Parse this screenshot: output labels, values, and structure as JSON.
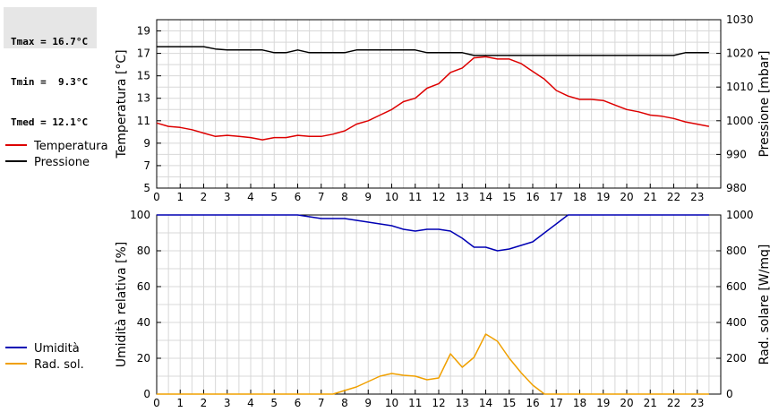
{
  "stats": [
    {
      "label": "Tmax =",
      "value": "16.7°C"
    },
    {
      "label": "Tmin =",
      "value": " 9.3°C"
    },
    {
      "label": "Tmed =",
      "value": "12.1°C"
    }
  ],
  "colors": {
    "temperatura": "#dd0000",
    "pressione": "#000000",
    "umidita": "#0000b4",
    "radiazione": "#f0a000",
    "grid": "#d8d8d8"
  },
  "chart_data": [
    {
      "type": "line",
      "title": "",
      "xlabel": "",
      "ylabel": "Temperatura [°C]",
      "ylabel_right": "Pressione [mbar]",
      "xlim": [
        0,
        24
      ],
      "ylim": [
        5,
        20
      ],
      "ylim_right": [
        980,
        1030
      ],
      "x_ticks": [
        "0",
        "1",
        "2",
        "3",
        "4",
        "5",
        "6",
        "7",
        "8",
        "9",
        "10",
        "11",
        "12",
        "13",
        "14",
        "15",
        "16",
        "17",
        "18",
        "19",
        "20",
        "21",
        "22",
        "23"
      ],
      "y_ticks": [
        "5",
        "7",
        "9",
        "11",
        "13",
        "15",
        "17",
        "19"
      ],
      "y_ticks_right": [
        "980",
        "990",
        "1000",
        "1010",
        "1020",
        "1030"
      ],
      "grid": true,
      "legend": "left",
      "series": [
        {
          "name": "Temperatura",
          "axis": "left",
          "color": "#dd0000",
          "x": [
            0,
            0.5,
            1,
            1.5,
            2,
            2.5,
            3,
            3.5,
            4,
            4.5,
            5,
            5.5,
            6,
            6.5,
            7,
            7.5,
            8,
            8.5,
            9,
            9.5,
            10,
            10.5,
            11,
            11.5,
            12,
            12.5,
            13,
            13.5,
            14,
            14.5,
            15,
            15.5,
            16,
            16.5,
            17,
            17.5,
            18,
            18.5,
            19,
            19.5,
            20,
            20.5,
            21,
            21.5,
            22,
            22.5,
            23,
            23.5
          ],
          "values": [
            10.8,
            10.5,
            10.4,
            10.2,
            9.9,
            9.6,
            9.7,
            9.6,
            9.5,
            9.3,
            9.5,
            9.5,
            9.7,
            9.6,
            9.6,
            9.8,
            10.1,
            10.7,
            11.0,
            11.5,
            12.0,
            12.7,
            13.0,
            13.9,
            14.3,
            15.3,
            15.7,
            16.6,
            16.7,
            16.5,
            16.5,
            16.1,
            15.4,
            14.7,
            13.7,
            13.2,
            12.9,
            12.9,
            12.8,
            12.4,
            12.0,
            11.8,
            11.5,
            11.4,
            11.2,
            10.9,
            10.7,
            10.5
          ]
        },
        {
          "name": "Pressione",
          "axis": "right",
          "color": "#000000",
          "x": [
            0,
            1,
            2,
            2.5,
            3,
            4,
            4.5,
            5,
            5.5,
            6,
            6.5,
            7,
            8,
            8.5,
            9,
            10,
            11,
            11.5,
            12,
            13,
            13.5,
            14,
            15,
            16,
            17,
            18,
            19,
            20,
            21,
            22,
            22.5,
            23,
            23.5
          ],
          "values": [
            1022,
            1022,
            1022,
            1021.3,
            1021,
            1021,
            1021,
            1020.2,
            1020.2,
            1021,
            1020.2,
            1020.2,
            1020.2,
            1021,
            1021,
            1021,
            1021,
            1020.2,
            1020.2,
            1020.2,
            1019.4,
            1019.4,
            1019.4,
            1019.4,
            1019.4,
            1019.4,
            1019.4,
            1019.4,
            1019.4,
            1019.4,
            1020.2,
            1020.2,
            1020.2
          ]
        }
      ]
    },
    {
      "type": "line",
      "title": "",
      "xlabel": "",
      "ylabel": "Umidità relativa [%]",
      "ylabel_right": "Rad. solare [W/mq]",
      "xlim": [
        0,
        24
      ],
      "ylim": [
        0,
        100
      ],
      "ylim_right": [
        0,
        1000
      ],
      "x_ticks": [
        "0",
        "1",
        "2",
        "3",
        "4",
        "5",
        "6",
        "7",
        "8",
        "9",
        "10",
        "11",
        "12",
        "13",
        "14",
        "15",
        "16",
        "17",
        "18",
        "19",
        "20",
        "21",
        "22",
        "23"
      ],
      "y_ticks": [
        "0",
        "20",
        "40",
        "60",
        "80",
        "100"
      ],
      "y_ticks_right": [
        "0",
        "200",
        "400",
        "600",
        "800",
        "1000"
      ],
      "grid": true,
      "legend": "left",
      "series": [
        {
          "name": "Umidità",
          "axis": "left",
          "color": "#0000b4",
          "x": [
            0,
            1,
            2,
            3,
            4,
            5,
            6,
            6.5,
            7,
            7.5,
            8,
            8.5,
            9,
            9.5,
            10,
            10.5,
            11,
            11.5,
            12,
            12.5,
            13,
            13.5,
            14,
            14.5,
            15,
            15.5,
            16,
            16.5,
            17,
            17.5,
            18,
            19,
            20,
            21,
            22,
            23,
            23.5
          ],
          "values": [
            100,
            100,
            100,
            100,
            100,
            100,
            100,
            99,
            98,
            98,
            98,
            97,
            96,
            95,
            94,
            92,
            91,
            92,
            92,
            91,
            87,
            82,
            82,
            80,
            81,
            83,
            85,
            90,
            95,
            100,
            100,
            100,
            100,
            100,
            100,
            100,
            100
          ]
        },
        {
          "name": "Rad. sol.",
          "axis": "right",
          "color": "#f0a000",
          "x": [
            0,
            1,
            2,
            3,
            4,
            5,
            6,
            7,
            7.5,
            8,
            8.5,
            9,
            9.5,
            10,
            10.5,
            11,
            11.5,
            12,
            12.5,
            13,
            13.5,
            14,
            14.5,
            15,
            15.5,
            16,
            16.5,
            17,
            18,
            19,
            20,
            21,
            22,
            23,
            23.5
          ],
          "values": [
            0,
            0,
            0,
            0,
            0,
            0,
            0,
            0,
            0,
            20,
            40,
            70,
            100,
            115,
            105,
            100,
            80,
            90,
            225,
            150,
            205,
            335,
            295,
            200,
            120,
            50,
            0,
            0,
            0,
            0,
            0,
            0,
            0,
            0,
            0
          ]
        }
      ]
    }
  ]
}
